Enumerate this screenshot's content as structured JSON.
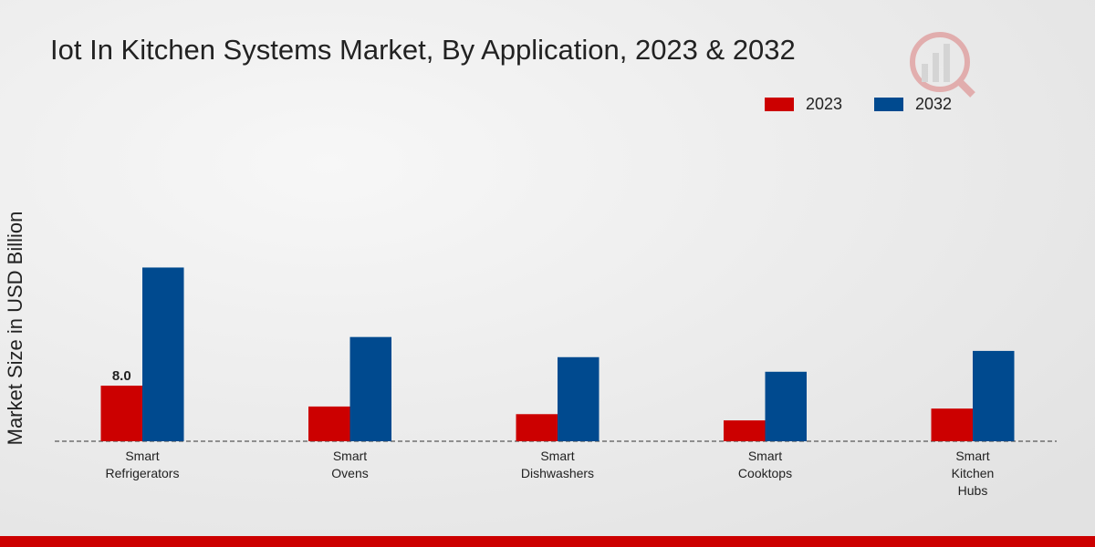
{
  "chart_data": {
    "type": "bar",
    "title": "Iot In Kitchen Systems Market, By Application, 2023 & 2032",
    "y_label": "Market Size in USD Billion",
    "categories": [
      "Smart Refrigerators",
      "Smart Ovens",
      "Smart Dishwashers",
      "Smart Cooktops",
      "Smart Kitchen Hubs"
    ],
    "series": [
      {
        "name": "2023",
        "color": "#cc0000",
        "values": [
          8.0,
          5.0,
          3.9,
          3.0,
          4.7
        ],
        "value_labels": [
          "8.0",
          null,
          null,
          null,
          null
        ]
      },
      {
        "name": "2032",
        "color": "#004a8f",
        "values": [
          25.0,
          15.0,
          12.1,
          10.0,
          13.0
        ]
      }
    ],
    "ylim": [
      0,
      45
    ],
    "legend": "top-right"
  }
}
